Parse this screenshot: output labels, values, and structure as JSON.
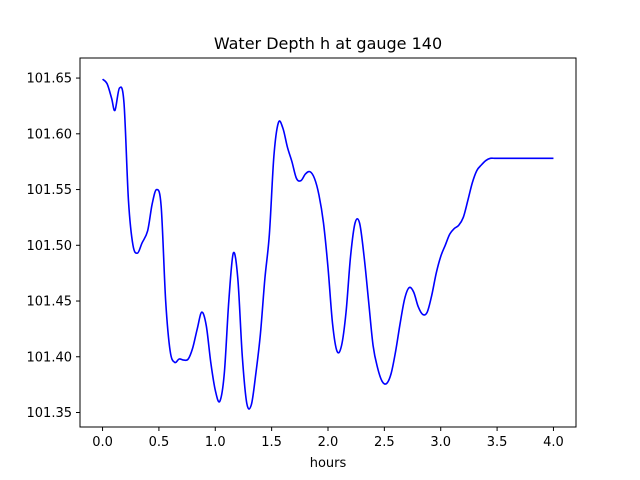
{
  "chart_data": {
    "type": "line",
    "title": "Water Depth h at gauge 140",
    "xlabel": "hours",
    "ylabel": "",
    "xlim": [
      -0.2,
      4.2
    ],
    "ylim": [
      101.337,
      101.668
    ],
    "xticks": [
      0.0,
      0.5,
      1.0,
      1.5,
      2.0,
      2.5,
      3.0,
      3.5,
      4.0
    ],
    "xtick_labels": [
      "0.0",
      "0.5",
      "1.0",
      "1.5",
      "2.0",
      "2.5",
      "3.0",
      "3.5",
      "4.0"
    ],
    "yticks": [
      101.35,
      101.4,
      101.45,
      101.5,
      101.55,
      101.6,
      101.65
    ],
    "ytick_labels": [
      "101.35",
      "101.40",
      "101.45",
      "101.50",
      "101.55",
      "101.60",
      "101.65"
    ],
    "grid": false,
    "series": [
      {
        "color": "#0000ff",
        "x": [
          0.0,
          0.04,
          0.08,
          0.11,
          0.15,
          0.19,
          0.23,
          0.27,
          0.31,
          0.35,
          0.4,
          0.44,
          0.48,
          0.52,
          0.56,
          0.6,
          0.64,
          0.68,
          0.72,
          0.76,
          0.8,
          0.84,
          0.88,
          0.92,
          0.96,
          1.0,
          1.04,
          1.08,
          1.12,
          1.16,
          1.2,
          1.24,
          1.28,
          1.32,
          1.36,
          1.4,
          1.44,
          1.48,
          1.52,
          1.56,
          1.6,
          1.64,
          1.68,
          1.72,
          1.76,
          1.8,
          1.84,
          1.88,
          1.92,
          1.96,
          2.0,
          2.04,
          2.08,
          2.12,
          2.16,
          2.2,
          2.24,
          2.28,
          2.32,
          2.36,
          2.4,
          2.44,
          2.48,
          2.52,
          2.56,
          2.6,
          2.64,
          2.68,
          2.72,
          2.76,
          2.8,
          2.84,
          2.88,
          2.92,
          2.96,
          3.0,
          3.04,
          3.08,
          3.12,
          3.16,
          3.2,
          3.24,
          3.28,
          3.32,
          3.36,
          3.4,
          3.44,
          3.48,
          3.52,
          3.56,
          3.6,
          3.64,
          3.68,
          3.72,
          3.76,
          3.8,
          3.84,
          3.88,
          3.92,
          3.96,
          4.0
        ],
        "y": [
          101.649,
          101.645,
          101.632,
          101.621,
          101.641,
          101.628,
          101.54,
          101.5,
          101.493,
          101.502,
          101.513,
          101.537,
          101.55,
          101.535,
          101.45,
          101.405,
          101.395,
          101.398,
          101.397,
          101.398,
          101.408,
          101.425,
          101.44,
          101.428,
          101.395,
          101.37,
          101.36,
          101.385,
          101.45,
          101.493,
          101.47,
          101.4,
          101.358,
          101.357,
          101.385,
          101.42,
          101.47,
          101.51,
          101.58,
          101.61,
          101.605,
          101.588,
          101.575,
          101.56,
          101.558,
          101.564,
          101.566,
          101.56,
          101.545,
          101.52,
          101.48,
          101.43,
          101.405,
          101.41,
          101.44,
          101.49,
          101.52,
          101.52,
          101.49,
          101.45,
          101.41,
          101.39,
          101.378,
          101.376,
          101.385,
          101.405,
          101.43,
          101.452,
          101.462,
          101.458,
          101.445,
          101.438,
          101.44,
          101.455,
          101.475,
          101.49,
          101.5,
          101.51,
          101.515,
          101.518,
          101.525,
          101.54,
          101.556,
          101.567,
          101.572,
          101.576,
          101.578,
          101.578,
          101.578,
          101.578,
          101.578,
          101.578,
          101.578,
          101.578,
          101.578,
          101.578,
          101.578,
          101.578,
          101.578,
          101.578,
          101.578
        ]
      }
    ]
  }
}
